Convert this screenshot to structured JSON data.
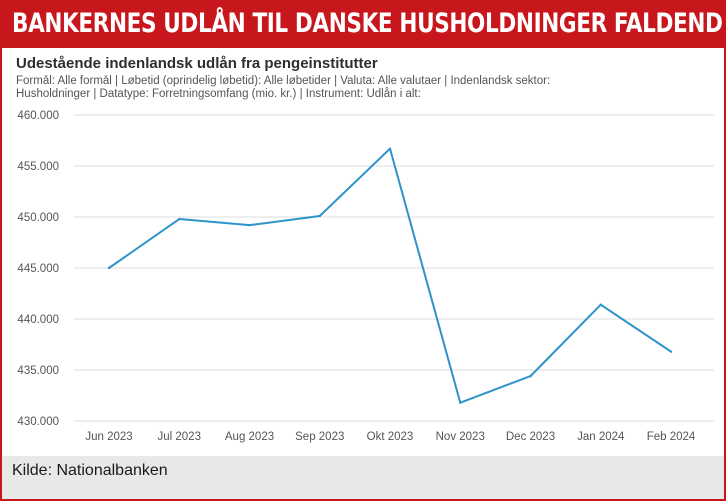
{
  "banner": {
    "title": "BANKERNES UDLÅN TIL DANSKE HUSHOLDNINGER FALDENDE"
  },
  "colors": {
    "banner": "#c8161d",
    "line": "#2e93c8",
    "grid": "#dcdcdc",
    "footer": "#e8e8e8"
  },
  "footer": {
    "source": "Kilde: Nationalbanken"
  },
  "chart_data": {
    "type": "line",
    "title": "Udestående indenlandsk udlån fra pengeinstitutter",
    "subtitle_lines": [
      "Formål: Alle formål | Løbetid (oprindelig løbetid): Alle løbetider | Valuta: Alle valutaer | Indenlandsk sektor:",
      "Husholdninger | Datatype: Forretningsomfang (mio. kr.) | Instrument: Udlån i alt:"
    ],
    "categories": [
      "Jun 2023",
      "Jul 2023",
      "Aug 2023",
      "Sep 2023",
      "Okt 2023",
      "Nov 2023",
      "Dec 2023",
      "Jan 2024",
      "Feb 2024"
    ],
    "series": [
      {
        "values": [
          445000,
          449800,
          449200,
          450100,
          456700,
          431800,
          434400,
          441400,
          436800
        ]
      }
    ],
    "ylim": [
      430000,
      460000
    ],
    "yticks": [
      {
        "value": 460000,
        "label": "460.000"
      },
      {
        "value": 455000,
        "label": "455.000"
      },
      {
        "value": 450000,
        "label": "450.000"
      },
      {
        "value": 445000,
        "label": "445.000"
      },
      {
        "value": 440000,
        "label": "440.000"
      },
      {
        "value": 435000,
        "label": "435.000"
      },
      {
        "value": 430000,
        "label": "430.000"
      }
    ],
    "grid": true,
    "legend": "none"
  }
}
